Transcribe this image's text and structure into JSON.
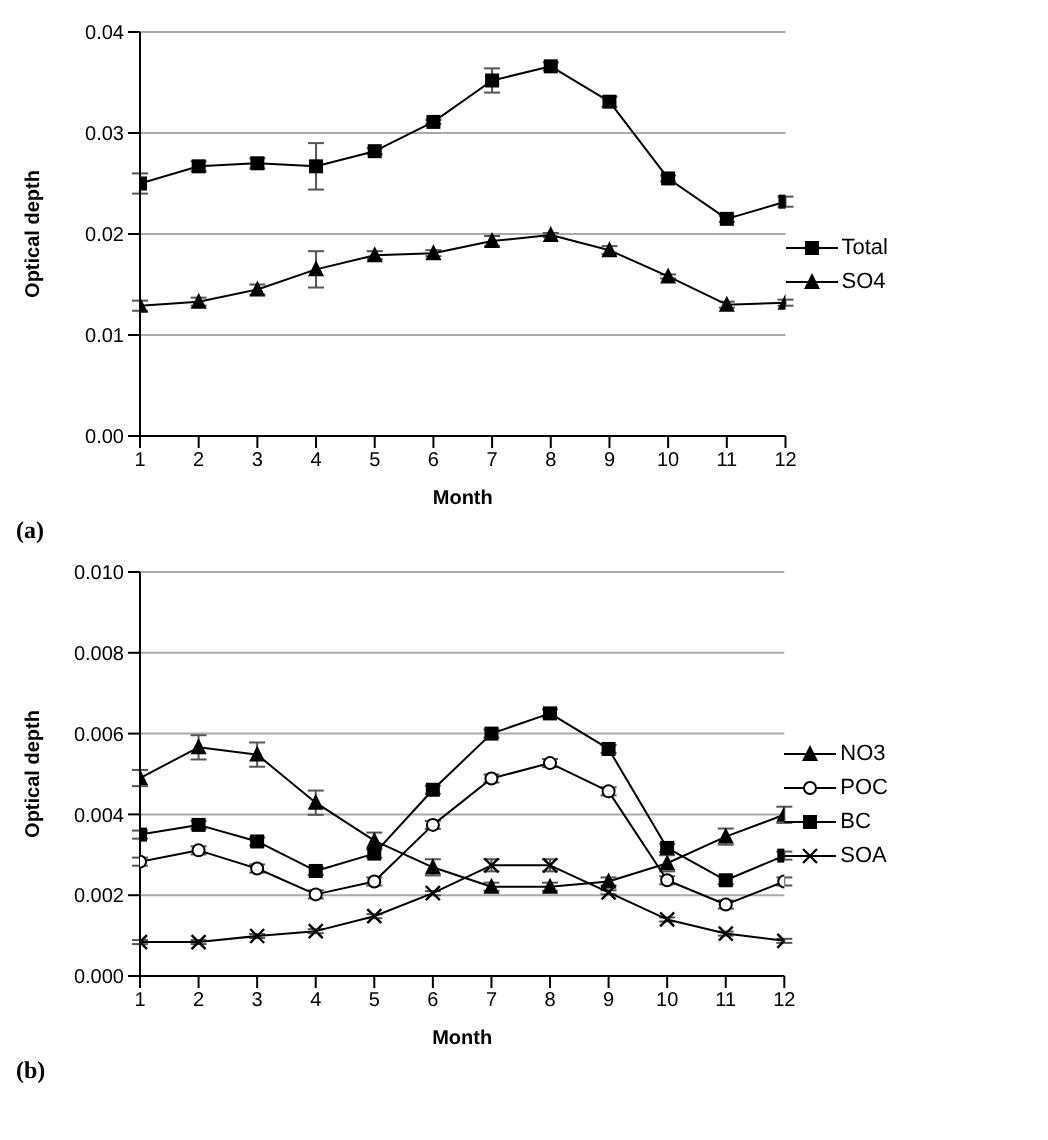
{
  "chart_data": [
    {
      "type": "line",
      "xlabel": "Month",
      "ylabel": "Optical depth",
      "x": [
        1,
        2,
        3,
        4,
        5,
        6,
        7,
        8,
        9,
        10,
        11,
        12
      ],
      "xlim": [
        1,
        12
      ],
      "xticks": [
        1,
        2,
        3,
        4,
        5,
        6,
        7,
        8,
        9,
        10,
        11,
        12
      ],
      "ylim": [
        0,
        0.04
      ],
      "yticks": [
        {
          "value": 0,
          "label": "0.00"
        },
        {
          "value": 0.01,
          "label": "0.01"
        },
        {
          "value": 0.02,
          "label": "0.02"
        },
        {
          "value": 0.03,
          "label": "0.03"
        },
        {
          "value": 0.04,
          "label": "0.04"
        }
      ],
      "grid": "y",
      "legend": "right",
      "annotations": [
        "(a)"
      ],
      "series": [
        {
          "name": "Total",
          "color": "#000000",
          "marker": "square",
          "values": [
            0.025,
            0.0267,
            0.027,
            0.0267,
            0.0282,
            0.0311,
            0.0352,
            0.0366,
            0.0331,
            0.0255,
            0.0215,
            0.0232
          ],
          "errors": [
            0.001,
            0.0005,
            0.0005,
            0.0023,
            0.0003,
            0.0002,
            0.0012,
            0.0004,
            0.0005,
            0.0003,
            0.0003,
            0.0005
          ]
        },
        {
          "name": "SO4",
          "color": "#000000",
          "marker": "triangle",
          "values": [
            0.0129,
            0.0133,
            0.0145,
            0.0165,
            0.0179,
            0.0181,
            0.0193,
            0.0199,
            0.0184,
            0.0158,
            0.013,
            0.0132
          ],
          "errors": [
            0.0005,
            0.0004,
            0.0005,
            0.0018,
            0.0004,
            0.0003,
            0.0005,
            0.0002,
            0.0004,
            0.0002,
            0.0003,
            0.0003
          ]
        }
      ]
    },
    {
      "type": "line",
      "xlabel": "Month",
      "ylabel": "Optical depth",
      "x": [
        1,
        2,
        3,
        4,
        5,
        6,
        7,
        8,
        9,
        10,
        11,
        12
      ],
      "xlim": [
        1,
        12
      ],
      "xticks": [
        1,
        2,
        3,
        4,
        5,
        6,
        7,
        8,
        9,
        10,
        11,
        12
      ],
      "ylim": [
        0,
        0.01
      ],
      "yticks": [
        {
          "value": 0,
          "label": "0.000"
        },
        {
          "value": 0.002,
          "label": "0.002"
        },
        {
          "value": 0.004,
          "label": "0.004"
        },
        {
          "value": 0.006,
          "label": "0.006"
        },
        {
          "value": 0.008,
          "label": "0.008"
        },
        {
          "value": 0.01,
          "label": "0.010"
        }
      ],
      "grid": "y",
      "legend": "right",
      "annotations": [
        "(b)"
      ],
      "series": [
        {
          "name": "NO3",
          "color": "#000000",
          "marker": "triangle",
          "values": [
            0.0049,
            0.00566,
            0.00548,
            0.00429,
            0.00335,
            0.00269,
            0.00221,
            0.00221,
            0.00234,
            0.00279,
            0.00345,
            0.00399
          ],
          "errors": [
            0.0002,
            0.0003,
            0.0003,
            0.0003,
            0.0002,
            0.0002,
            0.0001,
            0.0001,
            0.0001,
            0.0002,
            0.0002,
            0.0002
          ]
        },
        {
          "name": "POC",
          "color": "#000000",
          "marker": "circle",
          "values": [
            0.00283,
            0.00311,
            0.00266,
            0.00202,
            0.00234,
            0.00374,
            0.00489,
            0.00527,
            0.00457,
            0.00237,
            0.00177,
            0.00234
          ],
          "errors": [
            0.0001,
            0.0001,
            0.0001,
            0.0001,
            0.0001,
            0.0001,
            0.0001,
            0.0001,
            0.0001,
            0.0001,
            0.0001,
            0.0001
          ]
        },
        {
          "name": "BC",
          "color": "#000000",
          "marker": "square",
          "values": [
            0.0035,
            0.00374,
            0.00333,
            0.0026,
            0.00303,
            0.00461,
            0.006,
            0.0065,
            0.00562,
            0.00317,
            0.00237,
            0.00298
          ],
          "errors": [
            0.0001,
            0.0001,
            0.0001,
            0.0001,
            0.0001,
            0.0001,
            0.0001,
            0.0001,
            0.0001,
            0.0001,
            0.0001,
            0.0001
          ]
        },
        {
          "name": "SOA",
          "color": "#000000",
          "marker": "cross",
          "values": [
            0.00084,
            0.00084,
            0.00099,
            0.00111,
            0.00148,
            0.00205,
            0.00274,
            0.00274,
            0.00207,
            0.0014,
            0.00105,
            0.00087
          ],
          "errors": [
            5e-05,
            5e-05,
            5e-05,
            5e-05,
            5e-05,
            5e-05,
            0.00015,
            0.00015,
            5e-05,
            5e-05,
            5e-05,
            5e-05
          ]
        }
      ]
    }
  ]
}
